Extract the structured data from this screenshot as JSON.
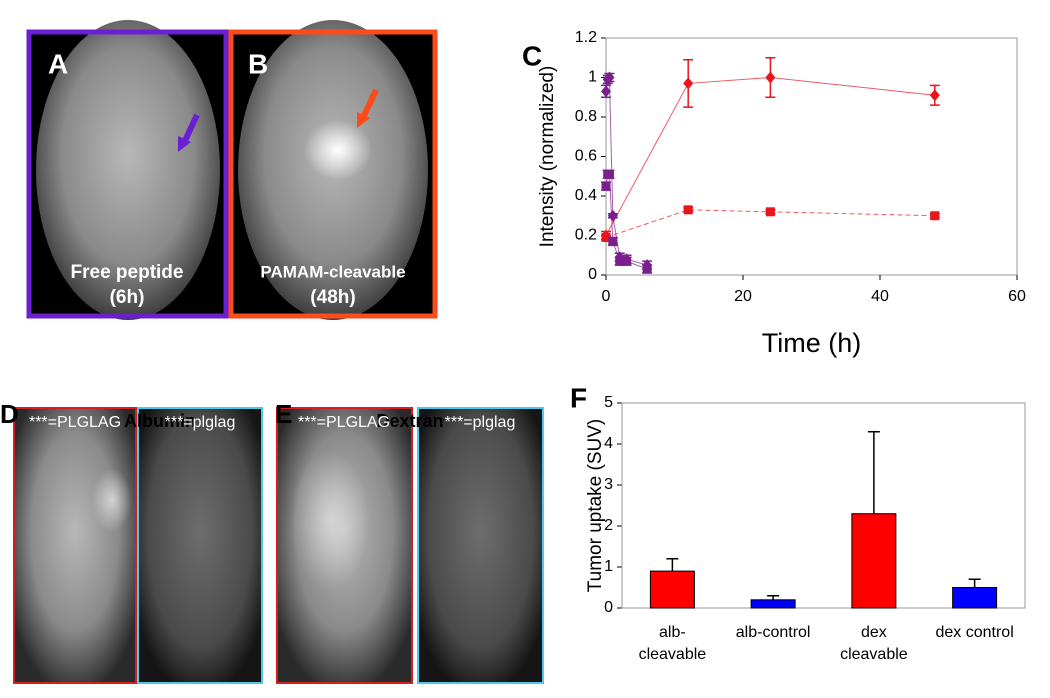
{
  "panels": [
    {
      "letter": "A",
      "caption": [
        "Free peptide",
        "(6h)"
      ]
    },
    {
      "letter": "B",
      "caption": [
        "PAMAM-cleavable",
        "(48h)"
      ]
    },
    {
      "letter": "D",
      "title": "Albumin",
      "left": "***=PLGLAG",
      "right": "***=plglag"
    },
    {
      "letter": "E",
      "title": "Dextran",
      "left": "***=PLGLAG",
      "right": "***=plglag"
    }
  ],
  "chart_data": [
    {
      "type": "line",
      "letter": "C",
      "x_label": "Time (h)",
      "y_label": "Intensity (normalized)",
      "xlim": [
        0,
        60
      ],
      "xticks": [
        0,
        20,
        40,
        60
      ],
      "ylim": [
        0,
        1.2
      ],
      "yticks": [
        0,
        0.2,
        0.4,
        0.6,
        0.8,
        1,
        1.2
      ],
      "series": [
        {
          "color": "#e8161b",
          "marker": "diamond",
          "line": "solid",
          "x": [
            0,
            12,
            24,
            48
          ],
          "values": [
            0.2,
            0.97,
            1.0,
            0.91
          ],
          "errors": [
            0.02,
            0.12,
            0.1,
            0.05
          ]
        },
        {
          "color": "#e8161b",
          "marker": "square",
          "line": "dashed",
          "x": [
            0,
            12,
            24,
            48
          ],
          "values": [
            0.19,
            0.33,
            0.32,
            0.3
          ],
          "errors": [
            0.01,
            0.01,
            0.01,
            0.01
          ]
        },
        {
          "color": "#7b1f8f",
          "marker": "diamond",
          "line": "solid",
          "x": [
            0,
            0.25,
            0.5,
            1,
            2,
            3,
            6
          ],
          "values": [
            0.93,
            0.99,
            1.0,
            0.3,
            0.09,
            0.08,
            0.05
          ],
          "errors": [
            0.03,
            0.02,
            0.02,
            0.01,
            0.02,
            0.02,
            0.02
          ]
        },
        {
          "color": "#7b1f8f",
          "marker": "square",
          "line": "solid",
          "x": [
            0,
            0.25,
            0.5,
            1,
            2,
            3,
            6
          ],
          "values": [
            0.45,
            0.51,
            0.51,
            0.17,
            0.07,
            0.07,
            0.03
          ],
          "errors": [
            0.02,
            0.02,
            0.02,
            0.02,
            0.02,
            0.02,
            0.02
          ]
        }
      ]
    },
    {
      "type": "bar",
      "letter": "F",
      "y_label": "Tumor uptake (SUV)",
      "categories": [
        "alb-\ncleavable",
        "alb-control",
        "dex\ncleavable",
        "dex control"
      ],
      "values": [
        0.9,
        0.2,
        2.3,
        0.5
      ],
      "errors": [
        0.3,
        0.1,
        2.0,
        0.2
      ],
      "colors": [
        "#ff0000",
        "#0000ff",
        "#ff0000",
        "#0000ff"
      ],
      "ylim": [
        0,
        5
      ],
      "yticks": [
        0,
        1,
        2,
        3,
        4,
        5
      ]
    }
  ]
}
